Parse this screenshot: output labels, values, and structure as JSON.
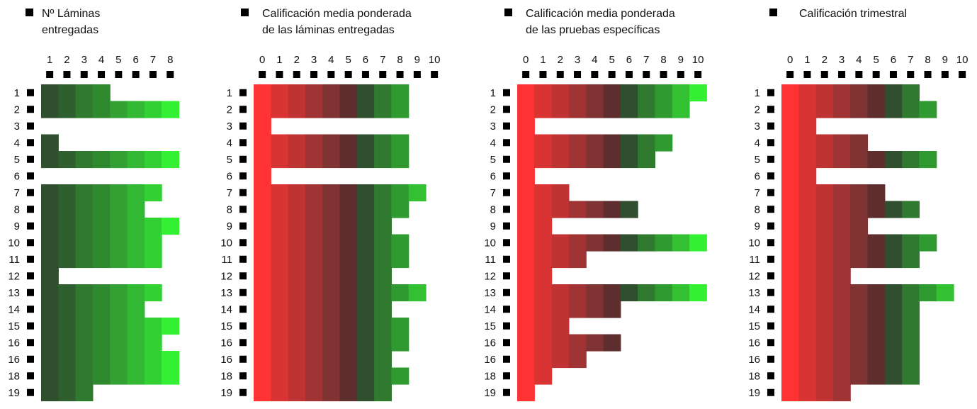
{
  "palette": {
    "score": [
      "#ff3333",
      "#d93333",
      "#c03333",
      "#a03333",
      "#803333",
      "#5e2d2d",
      "#2f4f2f",
      "#2f7a2f",
      "#2f9a2f",
      "#33c033",
      "#33f033"
    ],
    "count": [
      "#2f4f2f",
      "#2f5f2f",
      "#2f7a2f",
      "#2f8a2f",
      "#33a033",
      "#33b833",
      "#33d033",
      "#33f033"
    ],
    "marker": "#000000"
  },
  "chart_data": [
    {
      "type": "heatmap",
      "title": "Nº Láminas\nentregadas",
      "colorScale": "count",
      "columns": [
        "1",
        "2",
        "3",
        "4",
        "5",
        "6",
        "7",
        "8"
      ],
      "rows": [
        "1",
        "2",
        "3",
        "4",
        "5",
        "6",
        "7",
        "8",
        "9",
        "10",
        "11",
        "12",
        "13",
        "14",
        "15",
        "16",
        "16",
        "18",
        "19"
      ],
      "values": [
        4,
        8,
        0,
        1,
        8,
        0,
        7,
        6,
        8,
        7,
        7,
        1,
        7,
        6,
        8,
        7,
        8,
        8,
        3
      ]
    },
    {
      "type": "heatmap",
      "title": "Calificación media ponderada\nde las láminas entregadas",
      "colorScale": "score",
      "columns": [
        "0",
        "1",
        "2",
        "3",
        "4",
        "5",
        "6",
        "7",
        "8",
        "9",
        "10"
      ],
      "rows": [
        "1",
        "2",
        "3",
        "4",
        "5",
        "6",
        "7",
        "8",
        "9",
        "10",
        "11",
        "12",
        "13",
        "14",
        "15",
        "16",
        "16",
        "18",
        "19"
      ],
      "values": [
        8,
        8,
        0,
        8,
        8,
        0,
        9,
        8,
        7,
        8,
        8,
        7,
        9,
        7,
        8,
        8,
        7,
        8,
        7
      ]
    },
    {
      "type": "heatmap",
      "title": "Calificación media ponderada\nde las pruebas específicas",
      "colorScale": "score",
      "columns": [
        "0",
        "1",
        "2",
        "3",
        "4",
        "5",
        "6",
        "7",
        "8",
        "9",
        "10"
      ],
      "rows": [
        "1",
        "2",
        "3",
        "4",
        "5",
        "6",
        "7",
        "8",
        "9",
        "10",
        "11",
        "12",
        "13",
        "14",
        "15",
        "16",
        "16",
        "18",
        "19"
      ],
      "values": [
        10,
        9,
        0,
        8,
        7,
        0,
        2,
        6,
        1,
        10,
        3,
        1,
        10,
        5,
        2,
        5,
        3,
        1,
        0
      ]
    },
    {
      "type": "heatmap",
      "title": "Calificación trimestral",
      "colorScale": "score",
      "columns": [
        "0",
        "1",
        "2",
        "3",
        "4",
        "5",
        "6",
        "7",
        "8",
        "9",
        "10"
      ],
      "rows": [
        "1",
        "2",
        "3",
        "4",
        "5",
        "6",
        "7",
        "8",
        "9",
        "10",
        "11",
        "12",
        "13",
        "14",
        "15",
        "16",
        "16",
        "18",
        "19"
      ],
      "values": [
        7,
        8,
        1,
        4,
        8,
        1,
        5,
        7,
        4,
        8,
        7,
        3,
        9,
        7,
        7,
        7,
        7,
        7,
        3
      ]
    }
  ]
}
